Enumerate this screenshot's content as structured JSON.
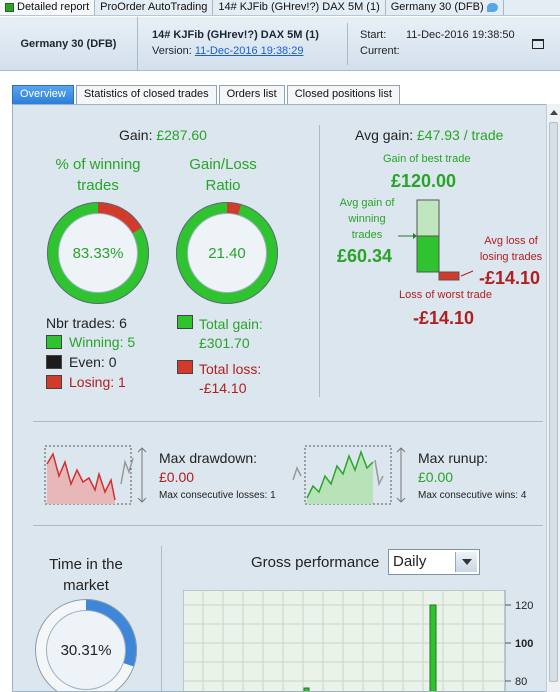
{
  "tab_strip": {
    "items": [
      "Detailed report",
      "ProOrder AutoTrading",
      "14# KJFib (GHrev!?) DAX 5M (1)",
      "Germany 30 (DFB)"
    ]
  },
  "header": {
    "instrument": "Germany 30 (DFB)",
    "strategy": "14# KJFib (GHrev!?) DAX 5M (1)",
    "version_label": "Version:",
    "version_date": "11-Dec-2016 19:38:29",
    "start_label": "Start:",
    "start_value": "11-Dec-2016 19:38:50",
    "current_label": "Current:"
  },
  "tabs": [
    "Overview",
    "Statistics of closed trades",
    "Orders list",
    "Closed positions list"
  ],
  "gain": {
    "label": "Gain:",
    "value": "£287.60",
    "pct_title": "% of winning trades",
    "pct_value": "83.33%",
    "pct_fraction": 0.8333,
    "ratio_title": "Gain/Loss Ratio",
    "ratio_value": "21.40",
    "ratio_fraction": 0.955,
    "nbr_trades": "Nbr trades: 6",
    "winning": "Winning: 5",
    "even": "Even: 0",
    "losing": "Losing: 1",
    "total_gain_label": "Total gain:",
    "total_gain_value": "£301.70",
    "total_loss_label": "Total loss:",
    "total_loss_value": "-£14.10"
  },
  "avg": {
    "title_label": "Avg gain:",
    "title_value": "£47.93 / trade",
    "best_label": "Gain of best trade",
    "best_value": "£120.00",
    "avg_win_label": "Avg gain of winning trades",
    "avg_win_value": "£60.34",
    "avg_loss_label": "Avg loss of losing trades",
    "avg_loss_value": "-£14.10",
    "worst_label": "Loss of worst trade",
    "worst_value": "-£14.10"
  },
  "drawdown": {
    "label": "Max drawdown:",
    "value": "£0.00",
    "sub": "Max consecutive losses: 1"
  },
  "runup": {
    "label": "Max runup:",
    "value": "£0.00",
    "sub": "Max consecutive wins: 4"
  },
  "market": {
    "title": "Time in the market",
    "value": "30.31%",
    "fraction": 0.3031
  },
  "gross": {
    "title": "Gross performance",
    "period": "Daily",
    "y_ticks": [
      "120",
      "100",
      "80"
    ]
  },
  "colors": {
    "green": "#28a428",
    "red": "#b02020",
    "blue": "#3d86d8"
  }
}
